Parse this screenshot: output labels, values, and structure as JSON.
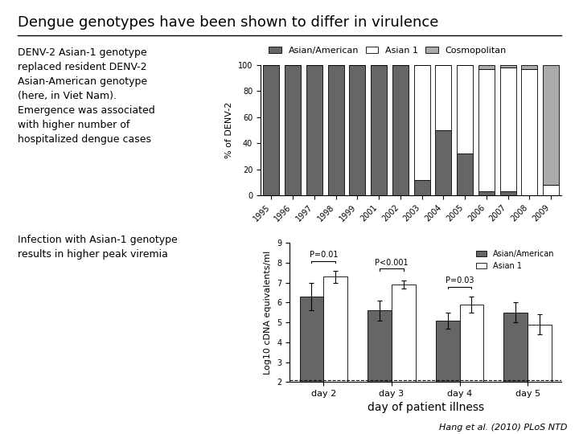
{
  "title": "Dengue genotypes have been shown to differ in virulence",
  "annotations": [
    "DENV-2 Asian-1 genotype\nreplaced resident DENV-2\nAsian-American genotype\n(here, in Viet Nam).\nEmergence was associated\nwith higher number of\nhospitalized dengue cases",
    "Infection with Asian-1 genotype\nresults in higher peak viremia",
    "Hang et al. (2010) PLoS NTD"
  ],
  "chart_data": [
    {
      "type": "bar",
      "stacked": true,
      "categories": [
        "1995",
        "1996",
        "1997",
        "1998",
        "1999",
        "2001",
        "2002",
        "2003",
        "2004",
        "2005",
        "2006",
        "2007",
        "2008",
        "2009"
      ],
      "series": [
        {
          "name": "Asian/American",
          "color": "#666666",
          "values": [
            100,
            100,
            100,
            100,
            100,
            100,
            100,
            12,
            50,
            32,
            3,
            3,
            0,
            0
          ]
        },
        {
          "name": "Asian 1",
          "color": "#ffffff",
          "values": [
            0,
            0,
            0,
            0,
            0,
            0,
            0,
            88,
            50,
            68,
            94,
            95,
            97,
            8
          ]
        },
        {
          "name": "Cosmopolitan",
          "color": "#aaaaaa",
          "values": [
            0,
            0,
            0,
            0,
            0,
            0,
            0,
            0,
            0,
            0,
            3,
            2,
            3,
            92
          ]
        }
      ],
      "y_label": "% of DENV-2",
      "ylim": [
        0,
        100
      ],
      "yticks": [
        0,
        20,
        40,
        60,
        80,
        100
      ],
      "legend": "lower left"
    },
    {
      "type": "bar",
      "categories": [
        "day 2",
        "day 3",
        "day 4",
        "day 5"
      ],
      "series": [
        {
          "name": "Asian/American",
          "color": "#666666",
          "values": [
            6.3,
            5.6,
            5.1,
            5.5
          ],
          "errors": [
            0.7,
            0.5,
            0.4,
            0.5
          ]
        },
        {
          "name": "Asian 1",
          "color": "#ffffff",
          "values": [
            7.3,
            6.9,
            5.9,
            4.9
          ],
          "errors": [
            0.3,
            0.2,
            0.4,
            0.5
          ]
        }
      ],
      "x_label": "day of patient illness",
      "y_label": "Log10 cDNA equivalents/ml",
      "ylim": [
        2,
        9
      ],
      "yticks": [
        2,
        3,
        4,
        5,
        6,
        7,
        8,
        9
      ],
      "reference_line": 2.1,
      "annotations": [
        {
          "text": "P=0.01",
          "x": "day 2",
          "y": 8.1
        },
        {
          "text": "P<0.001",
          "x": "day 3",
          "y": 7.7
        },
        {
          "text": "P=0.03",
          "x": "day 4",
          "y": 6.8
        }
      ],
      "legend": "upper right"
    }
  ]
}
